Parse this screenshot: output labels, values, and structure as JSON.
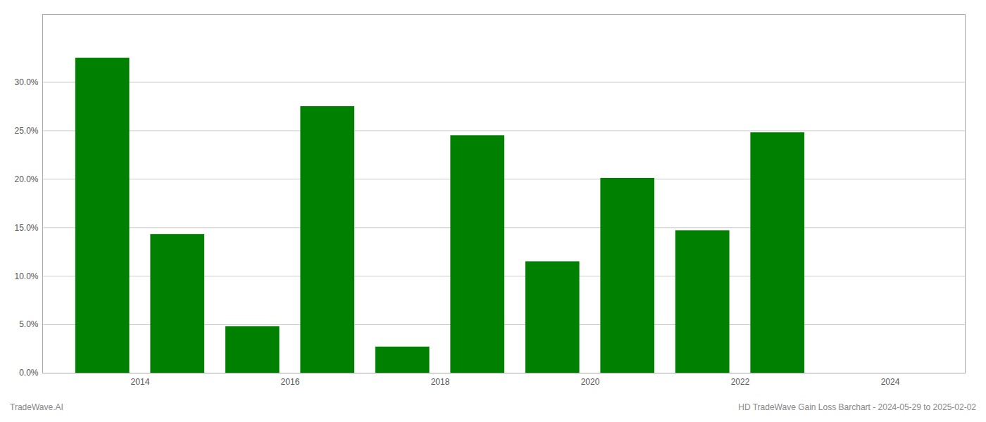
{
  "chart_data": {
    "type": "bar",
    "x": [
      2013.5,
      2014.5,
      2015.5,
      2016.5,
      2017.5,
      2018.5,
      2019.5,
      2020.5,
      2021.5,
      2022.5
    ],
    "values": [
      0.325,
      0.143,
      0.048,
      0.275,
      0.027,
      0.245,
      0.115,
      0.201,
      0.147,
      0.248
    ],
    "color": "#008000",
    "xlim": [
      2012.7,
      2025.0
    ],
    "xticks": [
      2014,
      2016,
      2018,
      2020,
      2022,
      2024
    ],
    "ylim": [
      0,
      0.37
    ],
    "yticks": [
      {
        "value": 0.0,
        "label": "0.0%"
      },
      {
        "value": 0.05,
        "label": "5.0%"
      },
      {
        "value": 0.1,
        "label": "10.0%"
      },
      {
        "value": 0.15,
        "label": "15.0%"
      },
      {
        "value": 0.2,
        "label": "20.0%"
      },
      {
        "value": 0.25,
        "label": "25.0%"
      },
      {
        "value": 0.3,
        "label": "30.0%"
      }
    ],
    "grid": true,
    "annotations": [
      "TradeWave.AI",
      "HD TradeWave Gain Loss Barchart - 2024-05-29 to 2025-02-02"
    ]
  }
}
